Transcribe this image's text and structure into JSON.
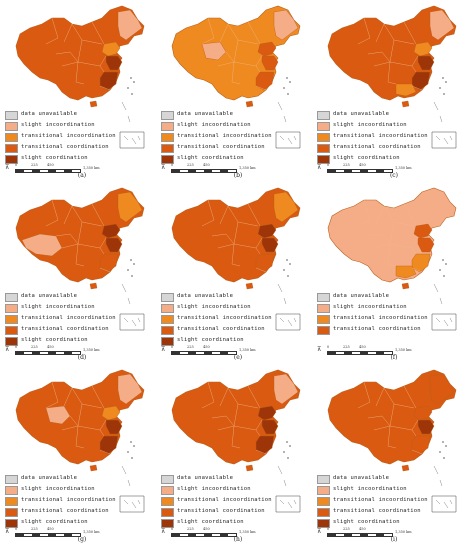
{
  "legend_items": [
    {
      "label": "data unavailable",
      "color": "#d6d6d6"
    },
    {
      "label": "slight incoordination",
      "color": "#f5ad87"
    },
    {
      "label": "transitional incoordination",
      "color": "#ee8a1f"
    },
    {
      "label": "transitional coordination",
      "color": "#d95a10"
    },
    {
      "label": "slight coordination",
      "color": "#9e3508"
    }
  ],
  "scale": {
    "ticks": [
      "0",
      "225",
      "450"
    ],
    "unit": "1,350 km"
  },
  "panels": [
    {
      "caption": "(a)",
      "base": 3,
      "legend_count": 5,
      "highlights": {
        "northeast": 1,
        "east": 4,
        "southeast": 4,
        "north": 2,
        "hainan": 3
      }
    },
    {
      "caption": "(b)",
      "base": 2,
      "legend_count": 5,
      "highlights": {
        "northeast": 1,
        "qinghai": 1,
        "east": 3,
        "southeast": 3,
        "north": 3,
        "hainan": 3
      }
    },
    {
      "caption": "(c)",
      "base": 3,
      "legend_count": 5,
      "highlights": {
        "northeast": 1,
        "east": 4,
        "southeast": 4,
        "north": 2,
        "south": 2,
        "hainan": 3
      }
    },
    {
      "caption": "(d)",
      "base": 3,
      "legend_count": 5,
      "highlights": {
        "tibet": 1,
        "northeast": 2,
        "east": 4,
        "southeast": 3,
        "north": 4,
        "hainan": 3
      }
    },
    {
      "caption": "(e)",
      "base": 3,
      "legend_count": 5,
      "highlights": {
        "northeast": 2,
        "east": 4,
        "southeast": 3,
        "north": 4,
        "hainan": 3
      }
    },
    {
      "caption": "(f)",
      "base": 1,
      "legend_count": 4,
      "highlights": {
        "east": 3,
        "southeast": 2,
        "north": 3,
        "south": 2,
        "hainan": 3
      }
    },
    {
      "caption": "(g)",
      "base": 3,
      "legend_count": 5,
      "highlights": {
        "northeast": 1,
        "qinghai": 1,
        "east": 4,
        "southeast": 4,
        "north": 2,
        "hainan": 3
      }
    },
    {
      "caption": "(h)",
      "base": 3,
      "legend_count": 5,
      "highlights": {
        "northeast": 1,
        "east": 4,
        "southeast": 4,
        "north": 4,
        "hainan": 3
      }
    },
    {
      "caption": "(i)",
      "base": 3,
      "legend_count": 5,
      "highlights": {
        "northeast": 3,
        "east": 4,
        "southeast": 3,
        "north": 3,
        "hainan": 3
      }
    }
  ]
}
